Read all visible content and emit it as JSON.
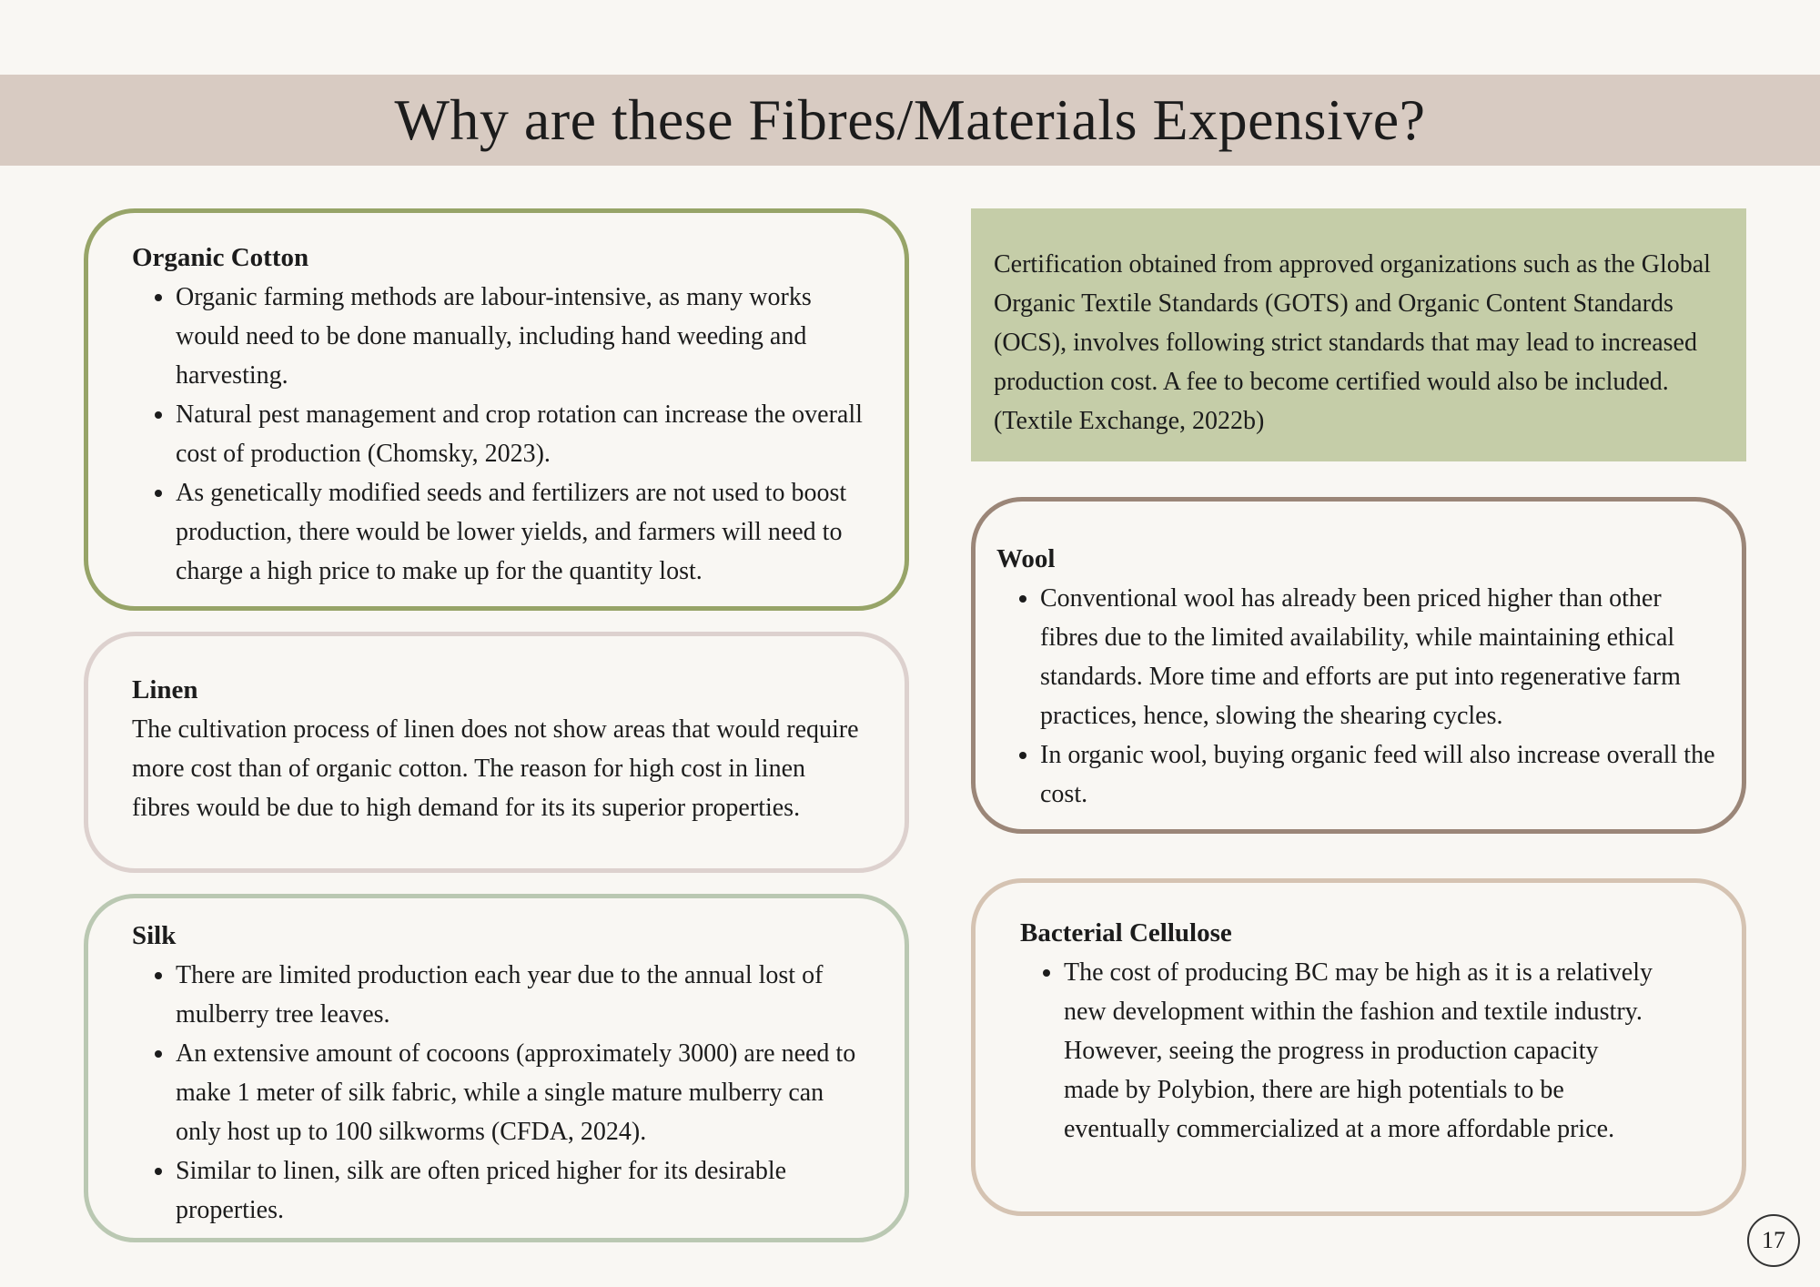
{
  "title": "Why are these Fibres/Materials Expensive?",
  "page_number": "17",
  "colors": {
    "background": "#f9f7f3",
    "title_band": "#d8cbc2",
    "cert_box": "#c5cda8",
    "cotton_border": "#97a468",
    "linen_border": "#ddd1ce",
    "silk_border": "#bac8b2",
    "wool_border": "#9b8678",
    "bc_border": "#d5c3b2"
  },
  "organic_cotton": {
    "heading": "Organic Cotton",
    "bullets": [
      "Organic farming methods are labour-intensive, as many works would need to be done manually, including hand weeding and harvesting.",
      "Natural pest management and crop rotation can increase the overall cost of production (Chomsky, 2023).",
      "As genetically modified seeds and fertilizers are not used to boost production, there would be lower yields, and farmers will need to charge a high price to make up for the quantity lost."
    ]
  },
  "linen": {
    "heading": "Linen",
    "text": "The cultivation process of linen does not show areas that would require more cost than of organic cotton. The reason for high cost in linen fibres would be due to high demand for its its superior properties."
  },
  "silk": {
    "heading": "Silk",
    "bullets": [
      "There are limited production each year due to the annual lost of mulberry tree leaves.",
      "An extensive amount of cocoons (approximately 3000) are need to make 1 meter of silk fabric, while a single mature mulberry can only host up to 100 silkworms (CFDA, 2024).",
      "Similar to linen, silk are often priced higher for its desirable properties."
    ]
  },
  "certification": {
    "text": "Certification obtained from approved organizations such as the Global Organic Textile Standards (GOTS) and Organic Content Standards (OCS), involves following strict standards that may lead to increased production cost. A fee to become certified would also be included. (Textile Exchange, 2022b)"
  },
  "wool": {
    "heading": "Wool",
    "bullets": [
      "Conventional wool has already been priced higher than other fibres due to the limited availability, while maintaining ethical standards. More time and efforts are put into regenerative farm practices, hence, slowing the shearing cycles.",
      "In organic wool, buying organic feed will also increase overall the cost."
    ]
  },
  "bacterial_cellulose": {
    "heading": "Bacterial Cellulose",
    "bullets": [
      "The cost of producing BC may be high as it is a relatively new development within the fashion and textile industry. However, seeing the progress in production capacity made by Polybion, there are high potentials to be eventually commercialized at a more affordable price."
    ]
  }
}
